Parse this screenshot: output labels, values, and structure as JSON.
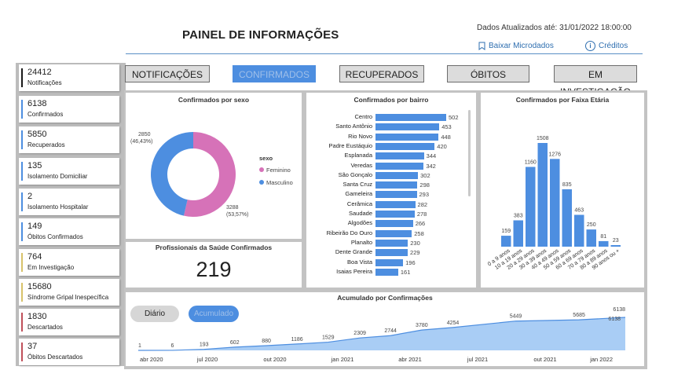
{
  "header": {
    "title": "PAINEL DE INFORMAÇÕES",
    "updated": "Dados Atualizados  até:  31/01/2022 18:00:00",
    "download_label": "Baixar Microdados",
    "credits_label": "Créditos"
  },
  "stats": [
    {
      "value": "24412",
      "label": "Notificações",
      "color": "#1a1a1a"
    },
    {
      "value": "6138",
      "label": "Confirmados",
      "color": "#4d8ee0"
    },
    {
      "value": "5850",
      "label": "Recuperados",
      "color": "#4d8ee0"
    },
    {
      "value": "135",
      "label": "Isolamento Domiciliar",
      "color": "#4d8ee0"
    },
    {
      "value": "2",
      "label": "Isolamento Hospitalar",
      "color": "#4d8ee0"
    },
    {
      "value": "149",
      "label": "Óbitos Confirmados",
      "color": "#4d8ee0"
    },
    {
      "value": "764",
      "label": "Em Investigação",
      "color": "#d8c26a"
    },
    {
      "value": "15680",
      "label": "Síndrome Gripal Inespecífica",
      "color": "#d8c26a"
    },
    {
      "value": "1830",
      "label": "Descartados",
      "color": "#c0505a"
    },
    {
      "value": "37",
      "label": "Óbitos Descartados",
      "color": "#c0505a"
    }
  ],
  "tabs": [
    {
      "label": "NOTIFICAÇÕES",
      "active": false
    },
    {
      "label": "CONFIRMADOS",
      "active": true
    },
    {
      "label": "RECUPERADOS",
      "active": false
    },
    {
      "label": "ÓBITOS",
      "active": false
    },
    {
      "label": "EM INVESTIGAÇÃO",
      "active": false
    }
  ],
  "professionals": {
    "title": "Profissionais da Saúde Confirmados",
    "value": "219"
  },
  "toggle": {
    "daily": "Diário",
    "cumulative": "Acumulado"
  },
  "colors": {
    "primary": "#4d8ee0",
    "pink": "#d672b8",
    "area": "#a9cdf5"
  },
  "chart_data": [
    {
      "type": "pie",
      "title": "Confirmados por sexo",
      "legend_title": "sexo",
      "categories": [
        "Feminino",
        "Masculino"
      ],
      "values": [
        3288,
        2850
      ],
      "value_labels": [
        "3288\n(53,57%)",
        "2850\n(46,43%)"
      ],
      "colors": [
        "#d672b8",
        "#4d8ee0"
      ]
    },
    {
      "type": "bar",
      "orientation": "horizontal",
      "title": "Confirmados por bairro",
      "categories": [
        "Centro",
        "Santo Antônio",
        "Rio Novo",
        "Padre Eustáquio",
        "Esplanada",
        "Veredas",
        "São Gonçalo",
        "Santa Cruz",
        "Gameleira",
        "Cerâmica",
        "Saudade",
        "Algodões",
        "Ribeirão Do Ouro",
        "Planalto",
        "Dente Grande",
        "Boa Vista",
        "Isaias Pereira"
      ],
      "values": [
        502,
        453,
        448,
        420,
        344,
        342,
        302,
        298,
        293,
        282,
        278,
        266,
        258,
        230,
        229,
        196,
        161
      ]
    },
    {
      "type": "bar",
      "title": "Confirmados por Faixa Etária",
      "categories": [
        "0 a 9 anos",
        "10 a 19 anos",
        "20 a 29 anos",
        "30 a 39 anos",
        "40 a 49 anos",
        "50 a 59 anos",
        "60 a 69 anos",
        "70 a 79 anos",
        "80 a 89 anos",
        "90 anos ou +"
      ],
      "values": [
        159,
        383,
        1160,
        1508,
        1276,
        835,
        463,
        250,
        81,
        23
      ]
    },
    {
      "type": "area",
      "title": "Acumulado por Confirmações",
      "x_ticks": [
        "abr 2020",
        "jul 2020",
        "out 2020",
        "jan 2021",
        "abr 2021",
        "jul 2021",
        "out 2021",
        "jan 2022"
      ],
      "points": [
        {
          "x": 0.0,
          "y": 1,
          "label": "1"
        },
        {
          "x": 0.07,
          "y": 6,
          "label": "6"
        },
        {
          "x": 0.135,
          "y": 193,
          "label": "193"
        },
        {
          "x": 0.198,
          "y": 602,
          "label": "602"
        },
        {
          "x": 0.263,
          "y": 880,
          "label": "880"
        },
        {
          "x": 0.326,
          "y": 1186,
          "label": "1186"
        },
        {
          "x": 0.39,
          "y": 1529,
          "label": "1529"
        },
        {
          "x": 0.455,
          "y": 2309,
          "label": "2309"
        },
        {
          "x": 0.518,
          "y": 2744,
          "label": "2744"
        },
        {
          "x": 0.582,
          "y": 3780,
          "label": "3780"
        },
        {
          "x": 0.646,
          "y": 4254,
          "label": "4254"
        },
        {
          "x": 0.775,
          "y": 5449,
          "label": "5449"
        },
        {
          "x": 0.905,
          "y": 5685,
          "label": "5685"
        },
        {
          "x": 1.0,
          "y": 6138,
          "label": "6138"
        }
      ],
      "ylim": [
        0,
        6138
      ]
    }
  ]
}
